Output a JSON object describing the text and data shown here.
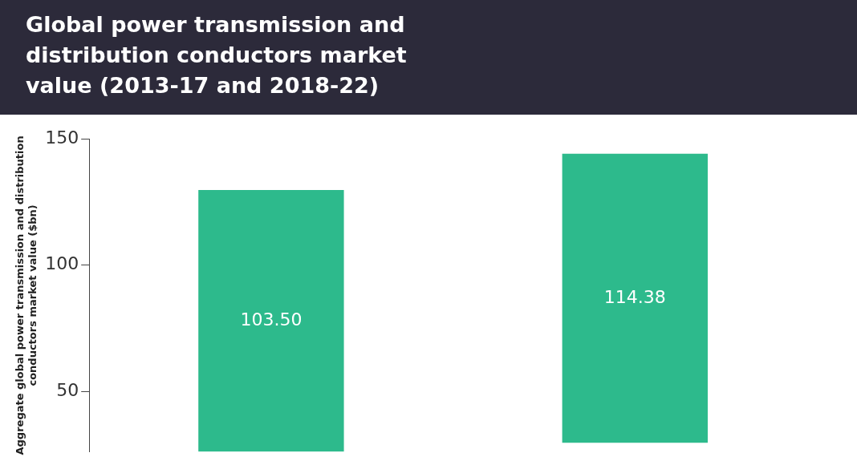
{
  "chart_data": {
    "type": "bar",
    "title": "Global power transmission and distribution conductors market value (2013-17 and 2018-22)",
    "ylabel": "Aggregate global power transmission and distribution conductors market value ($bn)",
    "categories": [
      null,
      null
    ],
    "values": [
      103.5,
      114.38
    ],
    "base": [
      26.2,
      29.7
    ],
    "value_labels": [
      "103.50",
      "114.38"
    ],
    "color": "#2dba8c",
    "ylim": [
      26,
      150
    ],
    "yticks": [
      50,
      100,
      150
    ],
    "grid": false,
    "legend": false
  }
}
